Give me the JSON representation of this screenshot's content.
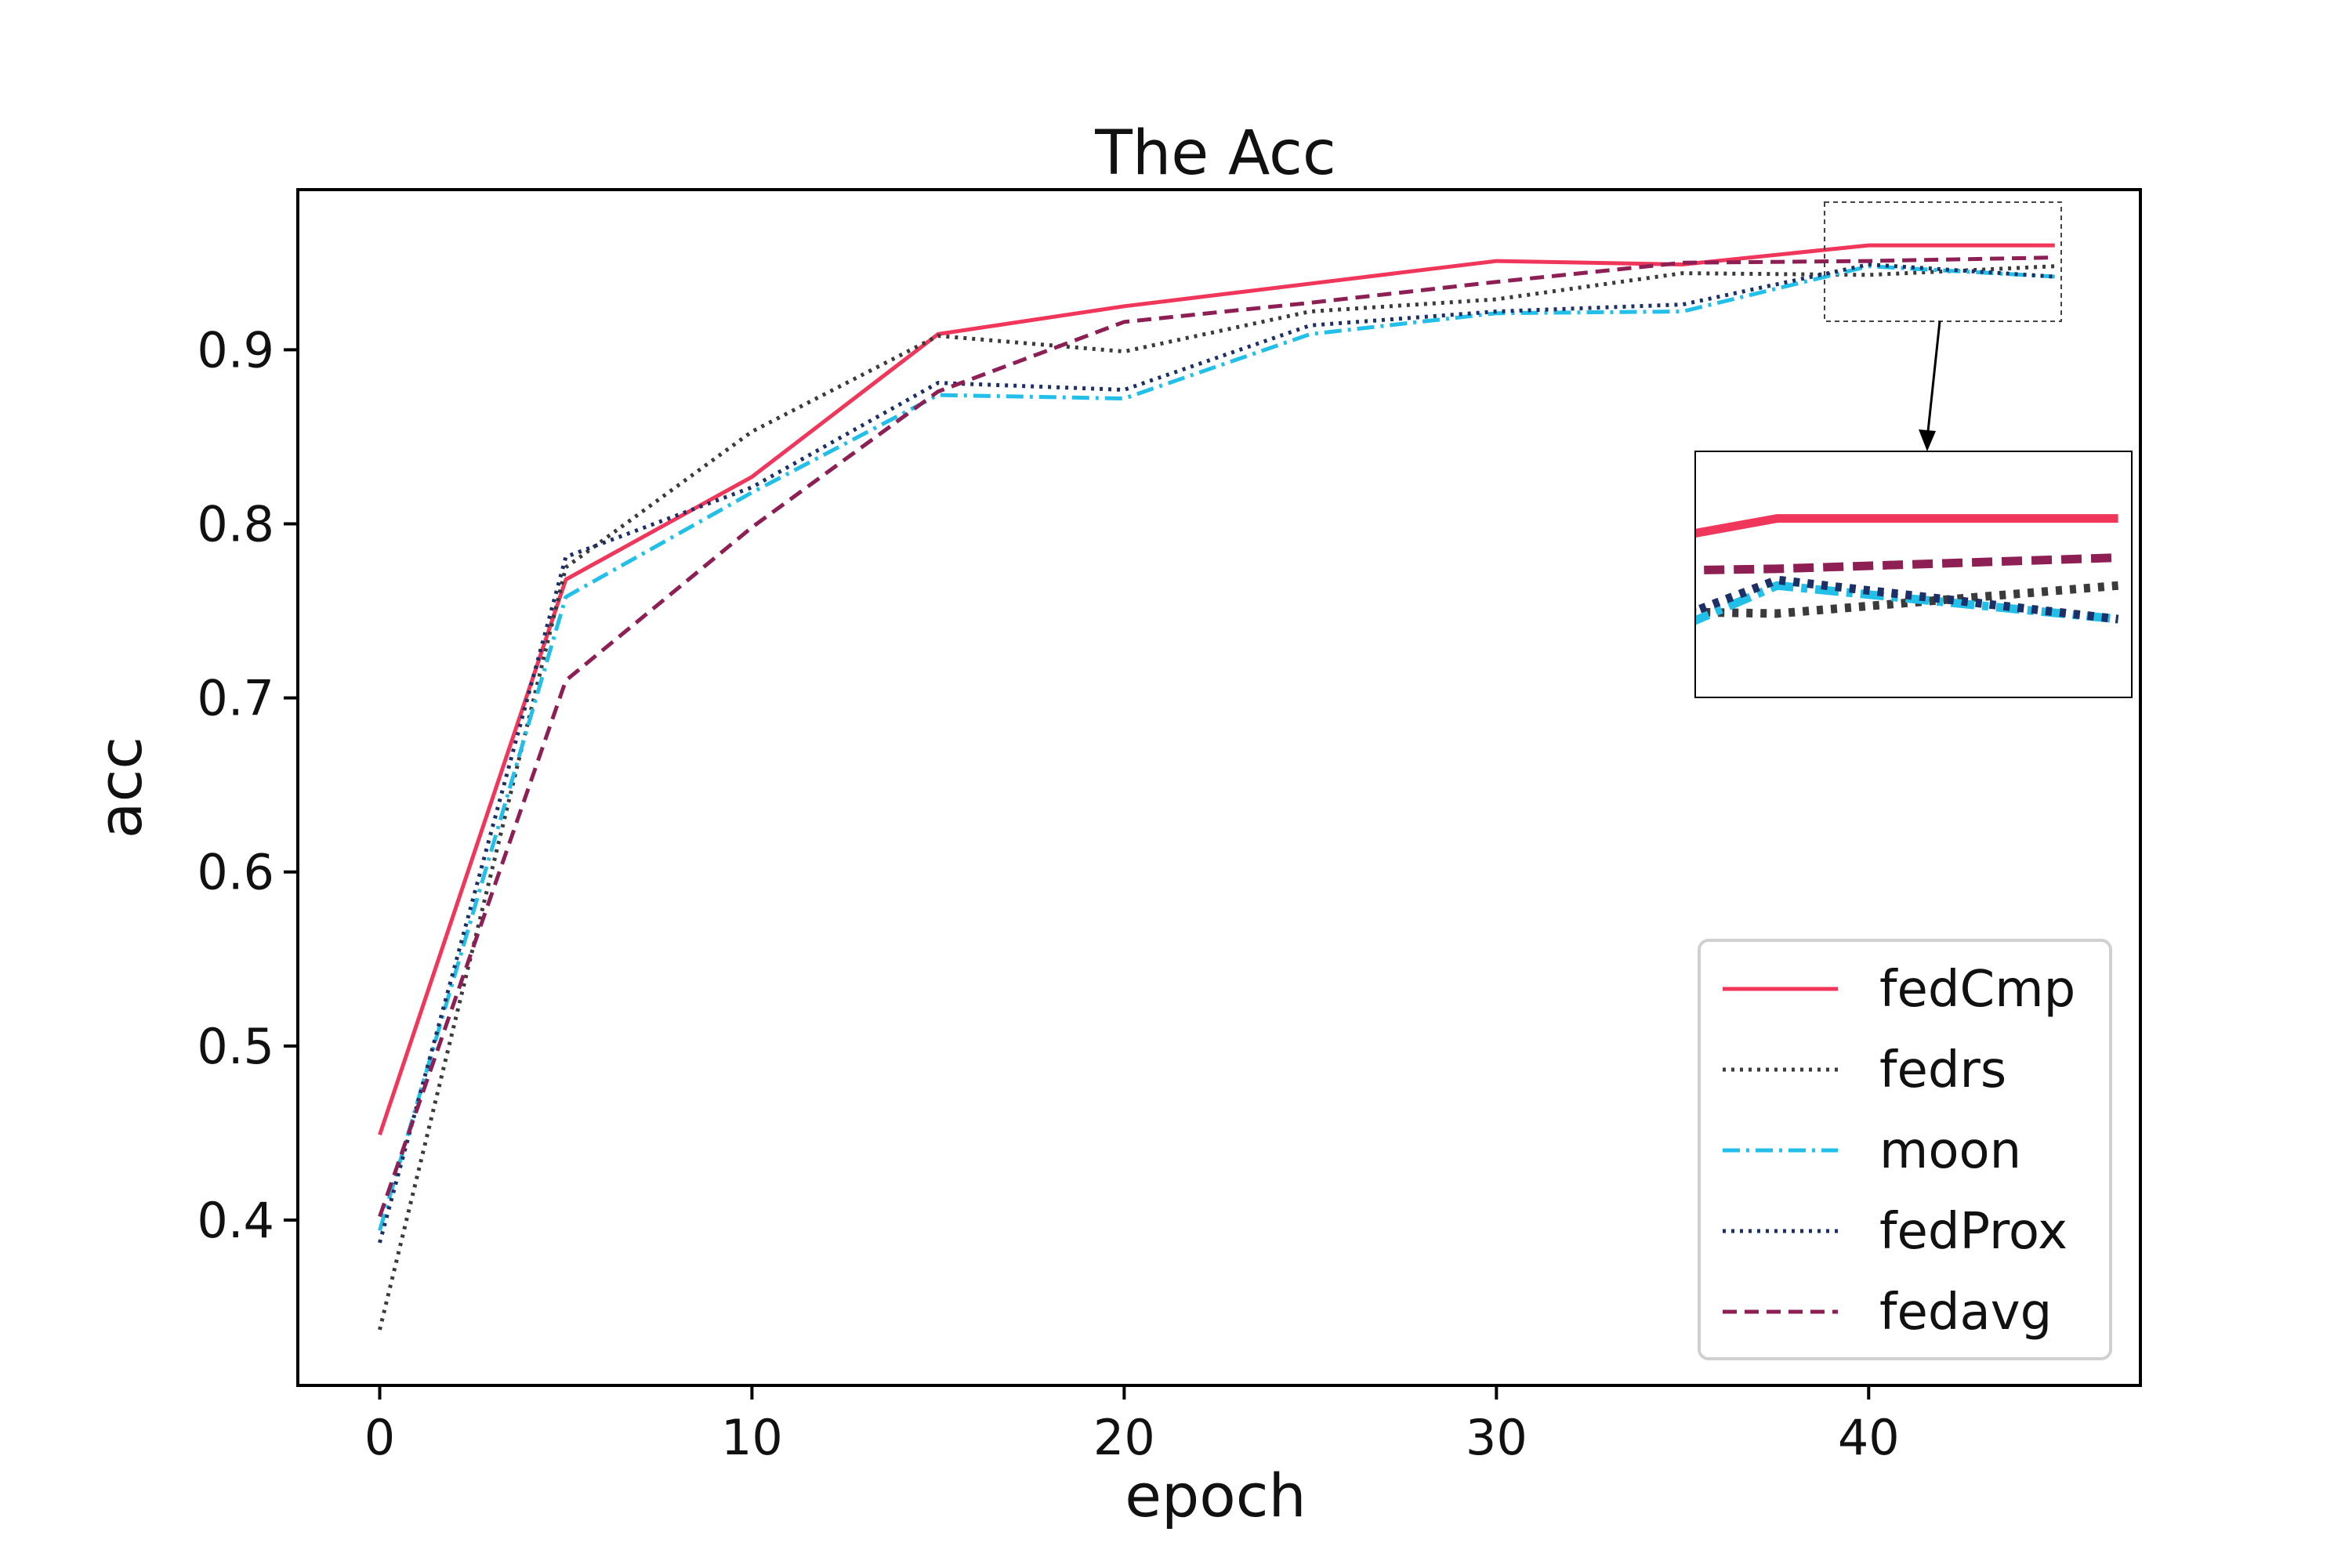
{
  "chart_data": {
    "type": "line",
    "title": "The Acc",
    "xlabel": "epoch",
    "ylabel": "acc",
    "xlim": [
      -2.2,
      47.3
    ],
    "ylim": [
      0.305,
      0.992
    ],
    "xticks": [
      0,
      10,
      20,
      30,
      40
    ],
    "yticks": [
      0.4,
      0.5,
      0.6,
      0.7,
      0.8,
      0.9
    ],
    "x": [
      0,
      5,
      10,
      15,
      20,
      25,
      30,
      35,
      40,
      45
    ],
    "grid": false,
    "legend_position": "lower-right",
    "series": [
      {
        "name": "fedCmp",
        "color": "#f0365a",
        "dash": "solid",
        "values": [
          0.449,
          0.768,
          0.827,
          0.909,
          0.925,
          0.938,
          0.951,
          0.949,
          0.96,
          0.96
        ]
      },
      {
        "name": "fedrs",
        "color": "#3b3b3b",
        "dash": "dotted",
        "values": [
          0.337,
          0.775,
          0.853,
          0.908,
          0.899,
          0.922,
          0.929,
          0.944,
          0.943,
          0.948
        ]
      },
      {
        "name": "moon",
        "color": "#22bfe8",
        "dash": "dashdot",
        "values": [
          0.394,
          0.758,
          0.818,
          0.874,
          0.872,
          0.909,
          0.921,
          0.922,
          0.948,
          0.942
        ]
      },
      {
        "name": "fedProx",
        "color": "#1c2f66",
        "dash": "dotted",
        "values": [
          0.387,
          0.781,
          0.821,
          0.881,
          0.877,
          0.914,
          0.922,
          0.926,
          0.949,
          0.942
        ]
      },
      {
        "name": "fedavg",
        "color": "#8e1f54",
        "dash": "dashed",
        "values": [
          0.402,
          0.71,
          0.798,
          0.876,
          0.916,
          0.927,
          0.939,
          0.95,
          0.951,
          0.953
        ]
      }
    ],
    "inset": {
      "xlim": [
        38.8,
        45.2
      ],
      "ylim": [
        0.928,
        0.972
      ]
    }
  }
}
